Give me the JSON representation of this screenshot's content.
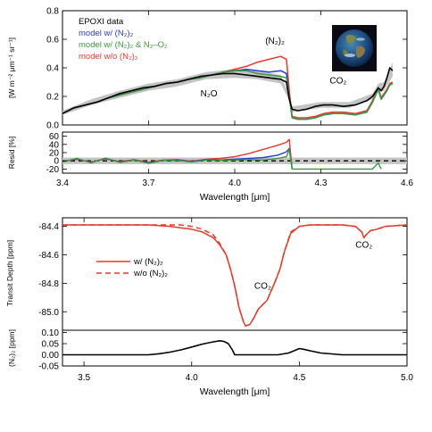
{
  "chart_data": [
    {
      "id": "spectrum",
      "type": "line",
      "ylabel": "[W m⁻² μm⁻¹ sr⁻¹]",
      "xlim": [
        3.4,
        4.6
      ],
      "ylim": [
        0.0,
        0.8
      ],
      "yticks": [
        "0.0",
        "0.2",
        "0.4",
        "0.6",
        "0.8"
      ],
      "series": [
        {
          "name": "EPOXI data",
          "color": "#000000",
          "x": [
            3.4,
            3.44,
            3.48,
            3.52,
            3.56,
            3.6,
            3.64,
            3.68,
            3.72,
            3.76,
            3.8,
            3.84,
            3.88,
            3.92,
            3.96,
            4.0,
            4.04,
            4.08,
            4.12,
            4.16,
            4.18,
            4.19,
            4.2,
            4.22,
            4.25,
            4.28,
            4.31,
            4.34,
            4.38,
            4.42,
            4.46,
            4.48,
            4.5,
            4.51,
            4.52,
            4.53,
            4.54,
            4.55
          ],
          "y": [
            0.08,
            0.12,
            0.14,
            0.16,
            0.19,
            0.22,
            0.24,
            0.26,
            0.27,
            0.29,
            0.3,
            0.32,
            0.34,
            0.35,
            0.36,
            0.36,
            0.35,
            0.34,
            0.33,
            0.32,
            0.3,
            0.18,
            0.11,
            0.1,
            0.11,
            0.13,
            0.14,
            0.14,
            0.13,
            0.14,
            0.17,
            0.2,
            0.26,
            0.24,
            0.27,
            0.33,
            0.4,
            0.38
          ]
        },
        {
          "name": "model w/ (N₂)₂",
          "color": "#2b3bd6",
          "x": [
            3.4,
            3.44,
            3.48,
            3.52,
            3.56,
            3.6,
            3.64,
            3.68,
            3.72,
            3.76,
            3.8,
            3.84,
            3.88,
            3.92,
            3.96,
            4.0,
            4.04,
            4.08,
            4.12,
            4.16,
            4.18,
            4.19,
            4.2,
            4.22,
            4.25,
            4.28,
            4.31,
            4.34,
            4.38,
            4.42,
            4.46,
            4.48,
            4.5,
            4.51,
            4.52,
            4.53,
            4.54,
            4.55
          ],
          "y": [
            0.08,
            0.12,
            0.14,
            0.16,
            0.19,
            0.21,
            0.23,
            0.25,
            0.27,
            0.29,
            0.3,
            0.32,
            0.33,
            0.35,
            0.37,
            0.38,
            0.39,
            0.38,
            0.37,
            0.38,
            0.36,
            0.2,
            0.05,
            0.04,
            0.04,
            0.05,
            0.07,
            0.08,
            0.08,
            0.07,
            0.09,
            0.16,
            0.25,
            0.18,
            0.21,
            0.24,
            0.28,
            0.29
          ]
        },
        {
          "name": "model w/ (N₂)₂ & N₂–O₂",
          "color": "#3a9a3a",
          "x": [
            3.4,
            3.44,
            3.48,
            3.52,
            3.56,
            3.6,
            3.64,
            3.68,
            3.72,
            3.76,
            3.8,
            3.84,
            3.88,
            3.92,
            3.96,
            4.0,
            4.04,
            4.08,
            4.12,
            4.16,
            4.18,
            4.19,
            4.2,
            4.22,
            4.25,
            4.28,
            4.31,
            4.34,
            4.38,
            4.42,
            4.46,
            4.48,
            4.5,
            4.51,
            4.52,
            4.53,
            4.54,
            4.55
          ],
          "y": [
            0.08,
            0.12,
            0.14,
            0.16,
            0.19,
            0.21,
            0.23,
            0.25,
            0.27,
            0.29,
            0.3,
            0.32,
            0.33,
            0.35,
            0.37,
            0.38,
            0.38,
            0.36,
            0.35,
            0.34,
            0.33,
            0.2,
            0.05,
            0.04,
            0.04,
            0.05,
            0.07,
            0.08,
            0.08,
            0.07,
            0.09,
            0.16,
            0.25,
            0.18,
            0.21,
            0.24,
            0.28,
            0.29
          ]
        },
        {
          "name": "model w/o (N₂)₂",
          "color": "#e43a2a",
          "x": [
            3.4,
            3.44,
            3.48,
            3.52,
            3.56,
            3.6,
            3.64,
            3.68,
            3.72,
            3.76,
            3.8,
            3.84,
            3.88,
            3.92,
            3.96,
            4.0,
            4.04,
            4.08,
            4.12,
            4.16,
            4.18,
            4.19,
            4.2,
            4.22,
            4.25,
            4.28,
            4.31,
            4.34,
            4.38,
            4.42,
            4.46,
            4.48,
            4.5,
            4.51,
            4.52,
            4.53,
            4.54,
            4.55
          ],
          "y": [
            0.08,
            0.12,
            0.14,
            0.16,
            0.19,
            0.21,
            0.23,
            0.25,
            0.27,
            0.29,
            0.3,
            0.32,
            0.33,
            0.35,
            0.37,
            0.39,
            0.41,
            0.44,
            0.46,
            0.48,
            0.46,
            0.24,
            0.06,
            0.05,
            0.05,
            0.06,
            0.08,
            0.09,
            0.09,
            0.08,
            0.1,
            0.17,
            0.26,
            0.19,
            0.22,
            0.25,
            0.29,
            0.3
          ]
        }
      ],
      "band": {
        "x": [
          3.4,
          3.5,
          3.6,
          3.7,
          3.8,
          3.9,
          4.0,
          4.08,
          4.16,
          4.19,
          4.2,
          4.3,
          4.4,
          4.48,
          4.5,
          4.52,
          4.55
        ],
        "lo": [
          0.07,
          0.14,
          0.19,
          0.24,
          0.27,
          0.32,
          0.33,
          0.32,
          0.29,
          0.17,
          0.09,
          0.12,
          0.12,
          0.18,
          0.23,
          0.24,
          0.34
        ],
        "hi": [
          0.1,
          0.18,
          0.24,
          0.29,
          0.32,
          0.37,
          0.39,
          0.38,
          0.35,
          0.21,
          0.13,
          0.16,
          0.16,
          0.22,
          0.29,
          0.3,
          0.44
        ]
      },
      "annotations": [
        {
          "text": "(N₂)₂",
          "x": 4.14,
          "y": 0.57
        },
        {
          "text": "N₂O",
          "x": 3.91,
          "y": 0.2
        },
        {
          "text": "CO₂",
          "x": 4.36,
          "y": 0.29
        }
      ],
      "legend_position": "top-left"
    },
    {
      "id": "residuals",
      "type": "line",
      "ylabel": "Resid [%]",
      "xlabel": "Wavelength [μm]",
      "xlim": [
        3.4,
        4.6
      ],
      "ylim": [
        -30,
        70
      ],
      "yticks": [
        "-20",
        "0",
        "20",
        "40",
        "60"
      ],
      "xticks": [
        "3.4",
        "3.7",
        "4.0",
        "4.3",
        "4.6"
      ],
      "band": [
        -8,
        8
      ],
      "series": [
        {
          "name": "w/o (N₂)₂",
          "color": "#e43a2a",
          "x": [
            3.4,
            3.45,
            3.5,
            3.55,
            3.6,
            3.65,
            3.7,
            3.75,
            3.8,
            3.85,
            3.9,
            3.95,
            4.0,
            4.05,
            4.1,
            4.15,
            4.18,
            4.19,
            4.2
          ],
          "y": [
            -2,
            4,
            -3,
            5,
            -2,
            3,
            -4,
            2,
            3,
            -1,
            4,
            6,
            10,
            18,
            28,
            38,
            45,
            52,
            -20
          ]
        },
        {
          "name": "w/ (N₂)₂",
          "color": "#2b3bd6",
          "x": [
            3.4,
            3.45,
            3.5,
            3.55,
            3.6,
            3.65,
            3.7,
            3.75,
            3.8,
            3.85,
            3.9,
            3.95,
            4.0,
            4.05,
            4.1,
            4.15,
            4.18,
            4.19,
            4.2
          ],
          "y": [
            -2,
            5,
            -4,
            6,
            -3,
            2,
            -5,
            1,
            2,
            -2,
            3,
            2,
            4,
            6,
            8,
            14,
            22,
            30,
            -20
          ]
        },
        {
          "name": "w/ (N₂)₂ & N₂–O₂",
          "color": "#3a9a3a",
          "x": [
            3.4,
            3.45,
            3.5,
            3.55,
            3.6,
            3.65,
            3.7,
            3.75,
            3.8,
            3.85,
            3.9,
            3.95,
            4.0,
            4.05,
            4.1,
            4.15,
            4.18,
            4.19,
            4.2,
            4.48,
            4.5,
            4.51
          ],
          "y": [
            -3,
            6,
            -5,
            7,
            -4,
            2,
            -6,
            1,
            1,
            -3,
            2,
            1,
            2,
            3,
            2,
            6,
            10,
            28,
            -20,
            -20,
            -5,
            -20
          ]
        }
      ]
    },
    {
      "id": "transit",
      "type": "line",
      "ylabel": "Transit Depth [ppm]",
      "xlim": [
        3.4,
        5.0
      ],
      "ylim": [
        -85.13,
        -84.34
      ],
      "yticks": [
        "-85.0",
        "-84.8",
        "-84.6",
        "-84.4"
      ],
      "legend_position": "left",
      "series": [
        {
          "name": "w/ (N₂)₂",
          "color": "#e43a2a",
          "dash": false,
          "x": [
            3.4,
            3.6,
            3.8,
            3.9,
            3.95,
            4.0,
            4.05,
            4.1,
            4.13,
            4.16,
            4.18,
            4.2,
            4.22,
            4.24,
            4.25,
            4.27,
            4.29,
            4.31,
            4.33,
            4.35,
            4.37,
            4.39,
            4.41,
            4.43,
            4.46,
            4.5,
            4.55,
            4.6,
            4.7,
            4.76,
            4.79,
            4.8,
            4.81,
            4.83,
            4.86,
            4.9,
            5.0
          ],
          "y": [
            -84.39,
            -84.39,
            -84.39,
            -84.4,
            -84.41,
            -84.42,
            -84.44,
            -84.48,
            -84.53,
            -84.6,
            -84.7,
            -84.82,
            -84.97,
            -85.07,
            -85.1,
            -85.09,
            -85.04,
            -84.98,
            -84.95,
            -84.92,
            -84.85,
            -84.78,
            -84.7,
            -84.58,
            -84.45,
            -84.4,
            -84.39,
            -84.39,
            -84.39,
            -84.4,
            -84.44,
            -84.48,
            -84.46,
            -84.43,
            -84.42,
            -84.4,
            -84.39
          ]
        },
        {
          "name": "w/o (N₂)₂",
          "color": "#e43a2a",
          "dash": true,
          "x": [
            3.4,
            3.8,
            3.95,
            4.0,
            4.05,
            4.1,
            4.13,
            4.16,
            4.18,
            4.2,
            4.22,
            4.24,
            4.25,
            4.27,
            4.29,
            4.31,
            4.33,
            4.35,
            4.37,
            4.39,
            4.41,
            4.43,
            4.46,
            4.5,
            4.55,
            4.6,
            4.7,
            4.76,
            4.79,
            4.8,
            4.81,
            4.83,
            4.86,
            4.9,
            5.0
          ],
          "y": [
            -84.39,
            -84.39,
            -84.39,
            -84.4,
            -84.42,
            -84.46,
            -84.52,
            -84.6,
            -84.7,
            -84.82,
            -84.97,
            -85.07,
            -85.1,
            -85.09,
            -85.04,
            -84.98,
            -84.95,
            -84.92,
            -84.85,
            -84.78,
            -84.7,
            -84.58,
            -84.44,
            -84.4,
            -84.39,
            -84.39,
            -84.39,
            -84.4,
            -84.44,
            -84.48,
            -84.46,
            -84.43,
            -84.42,
            -84.4,
            -84.39
          ]
        }
      ],
      "annotations": [
        {
          "text": "CO₂",
          "x": 4.33,
          "y": -84.84
        },
        {
          "text": "CO₂",
          "x": 4.8,
          "y": -84.55
        }
      ]
    },
    {
      "id": "difference",
      "type": "line",
      "ylabel": "(N₂)₂ [ppm]",
      "xlabel": "Wavelength [μm]",
      "xlim": [
        3.4,
        5.0
      ],
      "ylim": [
        -0.05,
        0.11
      ],
      "yticks": [
        "-0.05",
        "0.00",
        "0.05",
        "0.10"
      ],
      "xticks": [
        "3.5",
        "4.0",
        "4.5",
        "5.0"
      ],
      "series": [
        {
          "name": "(N₂)₂",
          "color": "#000000",
          "x": [
            3.4,
            3.8,
            3.85,
            3.9,
            3.95,
            4.0,
            4.05,
            4.1,
            4.13,
            4.15,
            4.17,
            4.19,
            4.2,
            4.3,
            4.4,
            4.45,
            4.48,
            4.5,
            4.52,
            4.55,
            4.6,
            4.7,
            5.0
          ],
          "y": [
            0.0,
            0.0,
            0.005,
            0.012,
            0.022,
            0.035,
            0.048,
            0.058,
            0.063,
            0.06,
            0.05,
            0.02,
            0.0,
            0.0,
            0.0,
            0.008,
            0.02,
            0.028,
            0.025,
            0.018,
            0.008,
            0.0,
            0.0
          ]
        }
      ]
    }
  ],
  "legend_top": [
    {
      "label": "EPOXI data",
      "color": "#000000"
    },
    {
      "label": "model w/ (N₂)₂",
      "color": "#2b3bd6"
    },
    {
      "label": "model w/ (N₂)₂ & N₂–O₂",
      "color": "#3a9a3a"
    },
    {
      "label": "model w/o (N₂)₂",
      "color": "#e43a2a"
    }
  ],
  "legend_bottom": [
    {
      "label": "w/ (N₂)₂",
      "color": "#e43a2a",
      "dashed": false
    },
    {
      "label": "w/o (N₂)₂",
      "color": "#e43a2a",
      "dashed": true
    }
  ],
  "earth_image": {
    "icon": "earth-globe-icon"
  }
}
